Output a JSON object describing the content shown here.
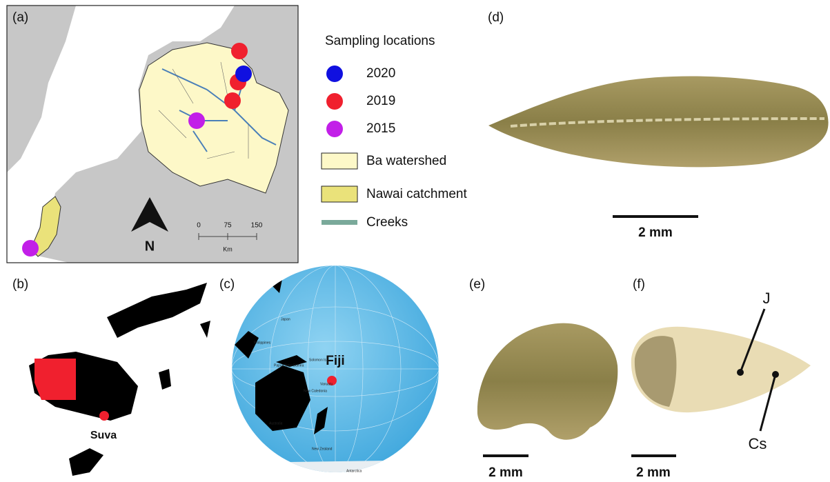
{
  "panels": {
    "a": {
      "label": "(a)",
      "legend": {
        "title": "Sampling locations",
        "items": [
          "2020",
          "2019",
          "2015",
          "Ba watershed",
          "Nawai catchment",
          "Creeks"
        ]
      },
      "scale": {
        "ticks": [
          "0",
          "75",
          "150"
        ],
        "unit": "Km"
      },
      "north": "N"
    },
    "b": {
      "label": "(b)",
      "place": "Suva"
    },
    "c": {
      "label": "(c)",
      "place": "Fiji",
      "places": [
        "Japan",
        "Philippines",
        "Papua New Guinea",
        "Solomon Is",
        "Vanuatu",
        "New Caledonia",
        "Australia",
        "New Zealand",
        "Antarctica"
      ]
    },
    "d": {
      "label": "(d)",
      "scale": "2 mm"
    },
    "e": {
      "label": "(e)",
      "scale": "2 mm"
    },
    "f": {
      "label": "(f)",
      "scale": "2 mm",
      "markers": [
        "J",
        "Cs"
      ]
    }
  }
}
